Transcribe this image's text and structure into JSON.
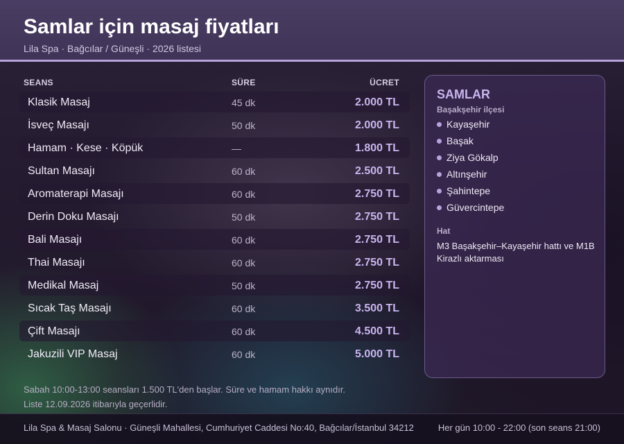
{
  "header": {
    "title": "Samlar için masaj fiyatları",
    "subtitle": "Lila Spa · Bağcılar / Güneşli · 2026 listesi"
  },
  "table": {
    "columns": {
      "session": "SEANS",
      "duration": "SÜRE",
      "price": "ÜCRET"
    },
    "rows": [
      {
        "name": "Klasik Masaj",
        "duration": "45 dk",
        "price": "2.000 TL"
      },
      {
        "name": "İsveç Masajı",
        "duration": "50 dk",
        "price": "2.000 TL"
      },
      {
        "name": "Hamam · Kese · Köpük",
        "duration": "—",
        "price": "1.800 TL"
      },
      {
        "name": "Sultan Masajı",
        "duration": "60 dk",
        "price": "2.500 TL"
      },
      {
        "name": "Aromaterapi Masajı",
        "duration": "60 dk",
        "price": "2.750 TL"
      },
      {
        "name": "Derin Doku Masajı",
        "duration": "50 dk",
        "price": "2.750 TL"
      },
      {
        "name": "Bali Masajı",
        "duration": "60 dk",
        "price": "2.750 TL"
      },
      {
        "name": "Thai Masajı",
        "duration": "60 dk",
        "price": "2.750 TL"
      },
      {
        "name": "Medikal Masaj",
        "duration": "50 dk",
        "price": "2.750 TL"
      },
      {
        "name": "Sıcak Taş Masajı",
        "duration": "60 dk",
        "price": "3.500 TL"
      },
      {
        "name": "Çift Masajı",
        "duration": "60 dk",
        "price": "4.500 TL"
      },
      {
        "name": "Jakuzili VIP Masaj",
        "duration": "60 dk",
        "price": "5.000 TL"
      }
    ]
  },
  "panel": {
    "title": "SAMLAR",
    "subtitle": "Başakşehir ilçesi",
    "areas": [
      "Kayaşehir",
      "Başak",
      "Ziya Gökalp",
      "Altınşehir",
      "Şahintepe",
      "Güvercintepe"
    ],
    "line_label": "Hat",
    "line_text": "M3 Başakşehir–Kayaşehir hattı ve M1B Kirazlı aktarması"
  },
  "notes": {
    "line1": "Sabah 10:00-13:00 seansları 1.500 TL'den başlar. Süre ve hamam hakkı aynıdır.",
    "line2": "Liste 12.09.2026 itibarıyla geçerlidir."
  },
  "footer": {
    "address": "Lila Spa & Masaj Salonu · Güneşli Mahallesi, Cumhuriyet Caddesi No:40, Bağcılar/İstanbul 34212",
    "hours": "Her gün 10:00 - 22:00 (son seans 21:00)"
  },
  "colors": {
    "accent": "#c9b5ee",
    "header_bg": "#463a5e",
    "header_border": "#b9a3dd"
  }
}
